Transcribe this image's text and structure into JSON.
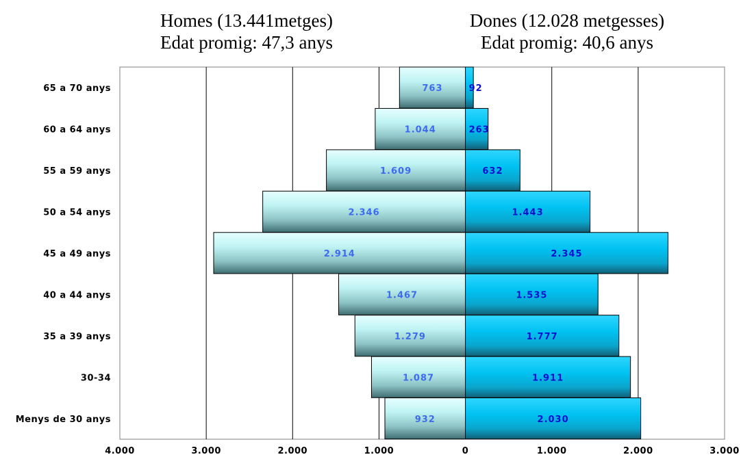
{
  "titles": {
    "men_line1": "Homes (13.441metges)",
    "men_line2": "Edat promig: 47,3 anys",
    "women_line1": "Dones (12.028 metgesses)",
    "women_line2": "Edat promig: 40,6 anys"
  },
  "chart_data": {
    "type": "bar",
    "orientation": "horizontal",
    "layout": "population-pyramid",
    "categories": [
      "65 a 70 anys",
      "60 a 64 anys",
      "55 a 59 anys",
      "50 a 54 anys",
      "45 a 49 anys",
      "40 a 44 anys",
      "35 a 39 anys",
      "30-34",
      "Menys de 30 anys"
    ],
    "series": [
      {
        "side": "left",
        "values": [
          763,
          1044,
          1609,
          2346,
          2914,
          1467,
          1279,
          1087,
          932
        ],
        "labels": [
          "763",
          "1.044",
          "1.609",
          "2.346",
          "2.914",
          "1.467",
          "1.279",
          "1.087",
          "932"
        ],
        "label_color": "#3d6cf0"
      },
      {
        "side": "right",
        "values": [
          92,
          263,
          632,
          1443,
          2345,
          1535,
          1777,
          1911,
          2030
        ],
        "labels": [
          "92",
          "263",
          "632",
          "1.443",
          "2.345",
          "1.535",
          "1.777",
          "1.911",
          "2.030"
        ],
        "label_color": "#0a0fd0"
      }
    ],
    "xlim": [
      -4000,
      3000
    ],
    "x_ticks": [
      -4000,
      -3000,
      -2000,
      -1000,
      0,
      1000,
      2000,
      3000
    ],
    "x_tick_labels": [
      "4.000",
      "3.000",
      "2.000",
      "1.000",
      "0",
      "1.000",
      "2.000",
      "3.000"
    ],
    "grid": "vertical",
    "legend": "none"
  }
}
